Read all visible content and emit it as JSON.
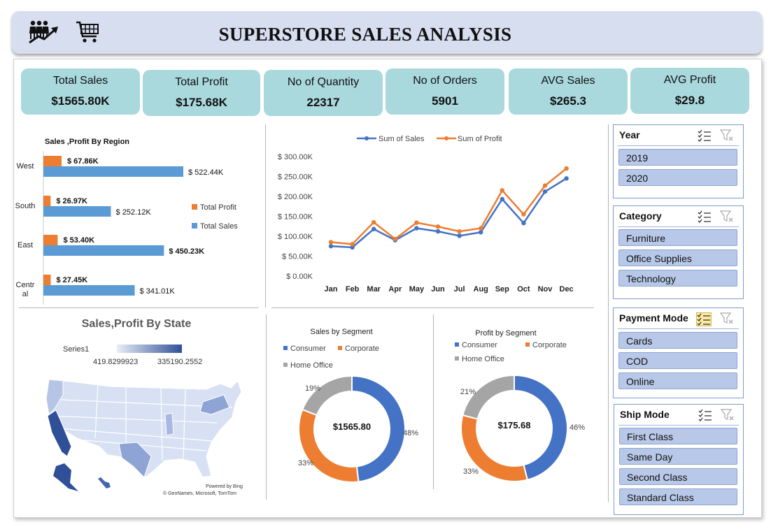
{
  "header": {
    "title": "SUPERSTORE SALES ANALYSIS"
  },
  "kpis": [
    {
      "label": "Total Sales",
      "value": "$1565.80K"
    },
    {
      "label": "Total Profit",
      "value": "$175.68K"
    },
    {
      "label": "No of Quantity",
      "value": "22317"
    },
    {
      "label": "No of Orders",
      "value": "5901"
    },
    {
      "label": "AVG Sales",
      "value": "$265.3"
    },
    {
      "label": "AVG Profit",
      "value": "$29.8"
    }
  ],
  "region_chart": {
    "title": "Sales ,Profit By Region",
    "legend_profit": "Total Profit",
    "legend_sales": "Total Sales"
  },
  "line_chart": {
    "legend_sales": "Sum of Sales",
    "legend_profit": "Sum of Profit"
  },
  "map": {
    "title": "Sales,Profit By State",
    "series": "Series1",
    "min_label": "419.8299923",
    "max_label": "335190.2552",
    "attribution1": "Powered by Bing",
    "attribution2": "© GeoNames, Microsoft, TomTom"
  },
  "donut_sales": {
    "title": "Sales by Segment",
    "center": "$1565.80",
    "legend": [
      "Consumer",
      "Corporate",
      "Home Office"
    ]
  },
  "donut_profit": {
    "title": "Profit by Segment",
    "center": "$175.68",
    "legend": [
      "Consumer",
      "Corporate",
      "Home Office"
    ]
  },
  "slicers": {
    "year": {
      "title": "Year",
      "items": [
        "2019",
        "2020"
      ]
    },
    "category": {
      "title": "Category",
      "items": [
        "Furniture",
        "Office Supplies",
        "Technology"
      ]
    },
    "payment": {
      "title": "Payment Mode",
      "items": [
        "Cards",
        "COD",
        "Online"
      ]
    },
    "ship": {
      "title": "Ship Mode",
      "items": [
        "First Class",
        "Same Day",
        "Second Class",
        "Standard Class"
      ]
    }
  },
  "colors": {
    "blue": "#4472c4",
    "orange": "#ed7d31",
    "gray": "#a5a5a5",
    "bar_blue": "#5b9bd5",
    "kpi": "#a9d8dd",
    "slicer_item": "#b8c8e8"
  },
  "icons": [
    "team-growth-icon",
    "shopping-cart-icon",
    "multi-select-icon",
    "clear-filter-icon"
  ],
  "chart_data": [
    {
      "type": "bar",
      "title": "Sales ,Profit By Region",
      "categories": [
        "West",
        "South",
        "East",
        "Central"
      ],
      "category_labels": [
        "West",
        "South",
        "East",
        "Centr al"
      ],
      "series": [
        {
          "name": "Total Profit",
          "values": [
            67.86,
            26.97,
            53.4,
            27.45
          ],
          "labels": [
            "$ 67.86K",
            "$ 26.97K",
            "$ 53.40K",
            "$ 27.45K"
          ]
        },
        {
          "name": "Total Sales",
          "values": [
            522.44,
            252.12,
            450.23,
            341.01
          ],
          "labels": [
            "$ 522.44K",
            "$ 252.12K",
            "$ 450.23K",
            "$ 341.01K"
          ]
        }
      ],
      "unit": "K",
      "orientation": "horizontal"
    },
    {
      "type": "line",
      "x": [
        "Jan",
        "Feb",
        "Mar",
        "Apr",
        "May",
        "Jun",
        "Jul",
        "Aug",
        "Sep",
        "Oct",
        "Nov",
        "Dec"
      ],
      "series": [
        {
          "name": "Sum of Sales",
          "values": [
            75,
            72,
            118,
            90,
            120,
            112,
            101,
            110,
            193,
            133,
            212,
            245
          ]
        },
        {
          "name": "Sum of Profit",
          "values": [
            85,
            80,
            135,
            93,
            134,
            124,
            112,
            120,
            215,
            155,
            227,
            270
          ]
        }
      ],
      "yticks": [
        "$ 0.00K",
        "$ 50.00K",
        "$ 100.00K",
        "$ 150.00K",
        "$ 200.00K",
        "$ 250.00K",
        "$ 300.00K"
      ],
      "ylim": [
        0,
        300
      ],
      "legend": "top"
    },
    {
      "type": "pie",
      "title": "Sales by Segment",
      "labels": [
        "Consumer",
        "Corporate",
        "Home Office"
      ],
      "values": [
        48,
        33,
        19
      ],
      "value_labels": [
        "48%",
        "33%",
        "19%"
      ],
      "donut": true
    },
    {
      "type": "pie",
      "title": "Profit by Segment",
      "labels": [
        "Consumer",
        "Corporate",
        "Home Office"
      ],
      "values": [
        46,
        33,
        21
      ],
      "value_labels": [
        "46%",
        "33%",
        "21%"
      ],
      "donut": true
    }
  ]
}
